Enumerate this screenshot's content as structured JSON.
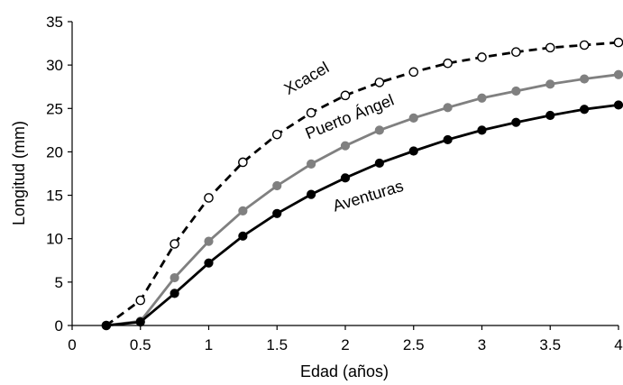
{
  "chart_data": {
    "type": "line",
    "title": "",
    "xlabel": "Edad (años)",
    "ylabel": "Longitud (mm)",
    "xlim": [
      0,
      4
    ],
    "ylim": [
      0,
      35
    ],
    "xticks": [
      0,
      0.5,
      1,
      1.5,
      2,
      2.5,
      3,
      3.5,
      4
    ],
    "yticks": [
      0,
      5,
      10,
      15,
      20,
      25,
      30,
      35
    ],
    "xtick_labels": [
      "0",
      "0.5",
      "1",
      "1.5",
      "2",
      "2.5",
      "3",
      "3.5",
      "4"
    ],
    "ytick_labels": [
      "0",
      "5",
      "10",
      "15",
      "20",
      "25",
      "30",
      "35"
    ],
    "grid": false,
    "legend": "none",
    "x": [
      0.25,
      0.5,
      0.75,
      1,
      1.25,
      1.5,
      1.75,
      2,
      2.25,
      2.5,
      2.75,
      3,
      3.25,
      3.5,
      3.75,
      4
    ],
    "series": [
      {
        "name": "Xcacel",
        "color": "#000000",
        "line_style": "dashed",
        "marker": "open-circle",
        "values": [
          0.0,
          2.9,
          9.4,
          14.7,
          18.8,
          22.0,
          24.5,
          26.5,
          28.0,
          29.2,
          30.2,
          30.9,
          31.5,
          32.0,
          32.3,
          32.6
        ]
      },
      {
        "name": "Puerto Ángel",
        "color": "#808080",
        "line_style": "solid",
        "marker": "filled-circle",
        "values": [
          0.0,
          0.5,
          5.5,
          9.7,
          13.2,
          16.1,
          18.6,
          20.7,
          22.5,
          23.9,
          25.1,
          26.2,
          27.0,
          27.8,
          28.4,
          28.9
        ]
      },
      {
        "name": "Aventuras",
        "color": "#000000",
        "line_style": "solid",
        "marker": "filled-circle",
        "values": [
          0.0,
          0.4,
          3.7,
          7.2,
          10.3,
          12.9,
          15.1,
          17.0,
          18.7,
          20.1,
          21.4,
          22.5,
          23.4,
          24.2,
          24.9,
          25.4
        ]
      }
    ]
  }
}
